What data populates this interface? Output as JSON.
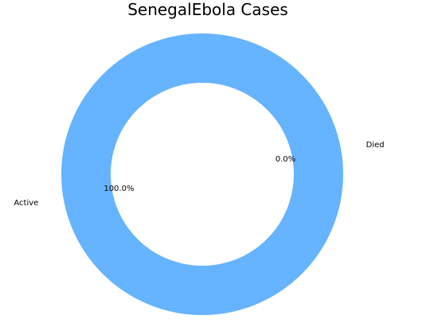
{
  "chart_data": {
    "type": "pie",
    "style": "donut",
    "title": "SenegalEbola  Cases",
    "slices": [
      {
        "label": "Active",
        "value": 100.0,
        "pct_label": "100.0%",
        "color": "#66b3ff"
      },
      {
        "label": "Died",
        "value": 0.0,
        "pct_label": "0.0%",
        "color": "#ff9999"
      }
    ],
    "legend": false
  }
}
